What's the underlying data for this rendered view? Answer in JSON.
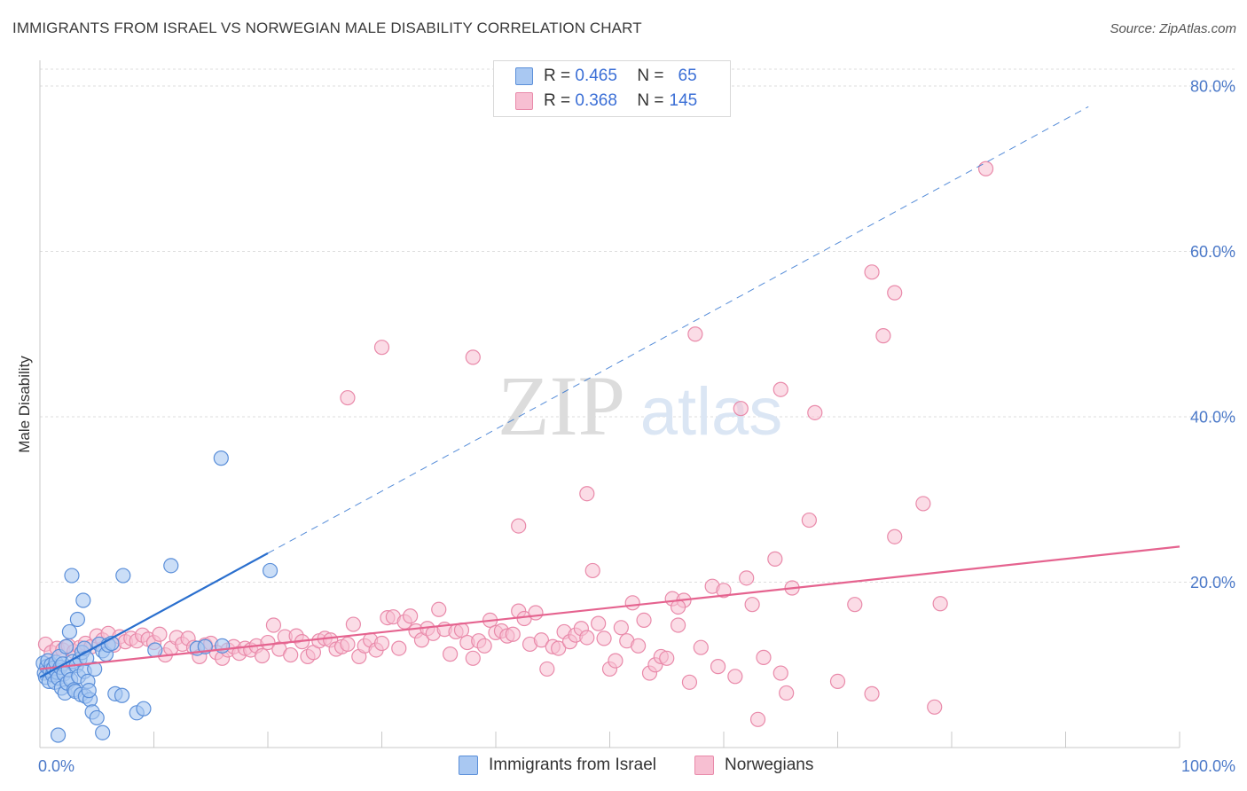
{
  "title": "IMMIGRANTS FROM ISRAEL VS NORWEGIAN MALE DISABILITY CORRELATION CHART",
  "source": "Source: ZipAtlas.com",
  "watermark": {
    "zip": "ZIP",
    "atlas": "atlas"
  },
  "colors": {
    "blue_fill": "#a9c8f2",
    "blue_stroke": "#5b8fd9",
    "blue_line": "#2a6fce",
    "pink_fill": "#f7bfd2",
    "pink_stroke": "#e98aaa",
    "pink_line": "#e5638f",
    "grid": "#dddddd",
    "tick_text": "#4a78c8"
  },
  "legend": {
    "rows": [
      {
        "r_label": "R =",
        "r_value": "0.465",
        "n_label": "N =",
        "n_value": "65"
      },
      {
        "r_label": "R =",
        "r_value": "0.368",
        "n_label": "N =",
        "n_value": "145"
      }
    ]
  },
  "bottom_legend": {
    "series1": "Immigrants from Israel",
    "series2": "Norwegians"
  },
  "chart_data": {
    "type": "scatter",
    "title": "IMMIGRANTS FROM ISRAEL VS NORWEGIAN MALE DISABILITY CORRELATION CHART",
    "xlabel": "",
    "ylabel": "Male Disability",
    "xlim": [
      0,
      100
    ],
    "ylim": [
      0,
      82
    ],
    "x_tick_labels": [
      "0.0%",
      "100.0%"
    ],
    "y_ticks": [
      20,
      40,
      60,
      80
    ],
    "y_tick_labels": [
      "20.0%",
      "40.0%",
      "60.0%",
      "80.0%"
    ],
    "grid": true,
    "series": [
      {
        "name": "Immigrants from Israel",
        "R": 0.465,
        "N": 65,
        "trend": {
          "x0": 0,
          "y0": 8.5,
          "x1": 20,
          "y1": 23.5,
          "extend_to_x": 92
        },
        "points": [
          [
            0.3,
            10.2
          ],
          [
            0.4,
            9.0
          ],
          [
            0.5,
            8.5
          ],
          [
            0.6,
            9.8
          ],
          [
            0.7,
            10.5
          ],
          [
            0.8,
            8.0
          ],
          [
            0.9,
            9.3
          ],
          [
            1.0,
            10.0
          ],
          [
            1.1,
            8.8
          ],
          [
            1.2,
            9.6
          ],
          [
            1.3,
            7.9
          ],
          [
            1.4,
            10.3
          ],
          [
            1.5,
            9.1
          ],
          [
            1.6,
            8.4
          ],
          [
            1.7,
            11.0
          ],
          [
            1.8,
            9.7
          ],
          [
            1.9,
            7.2
          ],
          [
            2.0,
            10.1
          ],
          [
            2.1,
            8.9
          ],
          [
            2.2,
            6.6
          ],
          [
            2.3,
            12.2
          ],
          [
            2.4,
            7.8
          ],
          [
            2.5,
            9.4
          ],
          [
            2.6,
            14.0
          ],
          [
            2.7,
            8.2
          ],
          [
            2.8,
            20.8
          ],
          [
            2.9,
            10.4
          ],
          [
            3.0,
            7.0
          ],
          [
            3.1,
            6.8
          ],
          [
            3.2,
            9.9
          ],
          [
            3.3,
            15.5
          ],
          [
            3.4,
            8.6
          ],
          [
            3.5,
            10.7
          ],
          [
            3.6,
            6.4
          ],
          [
            3.7,
            11.5
          ],
          [
            3.8,
            17.8
          ],
          [
            3.9,
            9.2
          ],
          [
            4.0,
            6.2
          ],
          [
            4.2,
            8.0
          ],
          [
            4.4,
            5.8
          ],
          [
            4.6,
            4.3
          ],
          [
            4.8,
            9.5
          ],
          [
            5.0,
            3.6
          ],
          [
            3.9,
            12.0
          ],
          [
            4.3,
            6.9
          ],
          [
            5.2,
            12.5
          ],
          [
            5.5,
            11.7
          ],
          [
            5.8,
            11.3
          ],
          [
            6.0,
            12.4
          ],
          [
            4.1,
            10.8
          ],
          [
            6.3,
            12.6
          ],
          [
            6.6,
            6.5
          ],
          [
            7.2,
            6.3
          ],
          [
            7.3,
            20.8
          ],
          [
            8.5,
            4.2
          ],
          [
            9.1,
            4.7
          ],
          [
            10.1,
            11.8
          ],
          [
            11.5,
            22.0
          ],
          [
            13.8,
            12.0
          ],
          [
            14.5,
            12.2
          ],
          [
            15.9,
            35.0
          ],
          [
            16.0,
            12.3
          ],
          [
            20.2,
            21.4
          ],
          [
            1.6,
            1.5
          ],
          [
            5.5,
            1.8
          ]
        ]
      },
      {
        "name": "Norwegians",
        "R": 0.368,
        "N": 145,
        "trend": {
          "x0": 0,
          "y0": 9.5,
          "x1": 100,
          "y1": 24.3
        },
        "points": [
          [
            0.5,
            12.5
          ],
          [
            1.0,
            11.5
          ],
          [
            1.5,
            12.0
          ],
          [
            2.0,
            11.8
          ],
          [
            2.5,
            12.3
          ],
          [
            3.0,
            11.6
          ],
          [
            3.5,
            12.1
          ],
          [
            4.0,
            12.6
          ],
          [
            4.5,
            12.2
          ],
          [
            5.0,
            13.5
          ],
          [
            5.5,
            13.0
          ],
          [
            6.0,
            13.8
          ],
          [
            6.5,
            12.4
          ],
          [
            7.0,
            13.4
          ],
          [
            7.5,
            12.8
          ],
          [
            8.0,
            13.2
          ],
          [
            8.5,
            12.9
          ],
          [
            9.0,
            13.6
          ],
          [
            9.5,
            13.1
          ],
          [
            10.0,
            12.7
          ],
          [
            10.5,
            13.7
          ],
          [
            11.0,
            11.2
          ],
          [
            11.5,
            12.0
          ],
          [
            12.0,
            13.3
          ],
          [
            12.5,
            12.5
          ],
          [
            13.0,
            13.2
          ],
          [
            13.5,
            12.1
          ],
          [
            14.0,
            11.0
          ],
          [
            14.5,
            12.4
          ],
          [
            15.0,
            12.6
          ],
          [
            15.5,
            11.5
          ],
          [
            16.0,
            10.8
          ],
          [
            16.5,
            11.8
          ],
          [
            17.0,
            12.2
          ],
          [
            17.5,
            11.4
          ],
          [
            18.0,
            12.0
          ],
          [
            18.5,
            11.8
          ],
          [
            19.0,
            12.3
          ],
          [
            19.5,
            11.1
          ],
          [
            20.0,
            12.7
          ],
          [
            20.5,
            14.8
          ],
          [
            21.0,
            11.9
          ],
          [
            21.5,
            13.4
          ],
          [
            22.0,
            11.2
          ],
          [
            22.5,
            13.5
          ],
          [
            23.0,
            12.8
          ],
          [
            23.5,
            11.0
          ],
          [
            24.0,
            11.5
          ],
          [
            24.5,
            12.9
          ],
          [
            25.0,
            13.2
          ],
          [
            25.5,
            13.0
          ],
          [
            26.0,
            11.9
          ],
          [
            26.5,
            12.2
          ],
          [
            27.0,
            12.5
          ],
          [
            27.5,
            14.9
          ],
          [
            28.0,
            11.0
          ],
          [
            28.5,
            12.3
          ],
          [
            29.0,
            13.0
          ],
          [
            29.5,
            11.8
          ],
          [
            30.0,
            12.6
          ],
          [
            30.5,
            15.7
          ],
          [
            31.0,
            15.8
          ],
          [
            31.5,
            12.0
          ],
          [
            32.0,
            15.2
          ],
          [
            32.5,
            15.9
          ],
          [
            33.0,
            14.1
          ],
          [
            33.5,
            13.0
          ],
          [
            34.0,
            14.4
          ],
          [
            34.5,
            13.8
          ],
          [
            35.0,
            16.7
          ],
          [
            35.5,
            14.3
          ],
          [
            36.0,
            11.3
          ],
          [
            36.5,
            14.0
          ],
          [
            37.0,
            14.2
          ],
          [
            37.5,
            12.7
          ],
          [
            38.0,
            10.8
          ],
          [
            38.5,
            12.9
          ],
          [
            39.0,
            12.3
          ],
          [
            39.5,
            15.4
          ],
          [
            40.0,
            13.9
          ],
          [
            40.5,
            14.1
          ],
          [
            41.0,
            13.5
          ],
          [
            41.5,
            13.7
          ],
          [
            42.0,
            16.5
          ],
          [
            42.5,
            15.6
          ],
          [
            43.0,
            12.5
          ],
          [
            43.5,
            16.3
          ],
          [
            44.0,
            13.0
          ],
          [
            44.5,
            9.5
          ],
          [
            45.0,
            12.2
          ],
          [
            45.5,
            12.0
          ],
          [
            46.0,
            14.0
          ],
          [
            46.5,
            12.8
          ],
          [
            47.0,
            13.6
          ],
          [
            47.5,
            14.4
          ],
          [
            48.0,
            13.3
          ],
          [
            48.5,
            21.4
          ],
          [
            49.0,
            15.0
          ],
          [
            49.5,
            13.2
          ],
          [
            50.0,
            9.5
          ],
          [
            50.5,
            10.5
          ],
          [
            51.0,
            14.5
          ],
          [
            51.5,
            12.9
          ],
          [
            52.0,
            17.5
          ],
          [
            52.5,
            12.3
          ],
          [
            53.0,
            15.4
          ],
          [
            53.5,
            9.0
          ],
          [
            54.0,
            10.0
          ],
          [
            54.5,
            11.0
          ],
          [
            55.0,
            10.8
          ],
          [
            55.5,
            18.0
          ],
          [
            56.0,
            14.8
          ],
          [
            56.5,
            17.8
          ],
          [
            57.0,
            7.9
          ],
          [
            58.0,
            12.1
          ],
          [
            59.0,
            19.5
          ],
          [
            59.5,
            9.8
          ],
          [
            60.0,
            19.0
          ],
          [
            61.0,
            8.6
          ],
          [
            62.0,
            20.5
          ],
          [
            62.5,
            17.3
          ],
          [
            63.0,
            3.4
          ],
          [
            63.5,
            10.9
          ],
          [
            64.5,
            22.8
          ],
          [
            65.0,
            9.0
          ],
          [
            65.5,
            6.6
          ],
          [
            66.0,
            19.3
          ],
          [
            67.5,
            27.5
          ],
          [
            70.0,
            8.0
          ],
          [
            71.5,
            17.3
          ],
          [
            73.0,
            6.5
          ],
          [
            75.0,
            25.5
          ],
          [
            77.5,
            29.5
          ],
          [
            78.5,
            4.9
          ],
          [
            79.0,
            17.4
          ],
          [
            83.0,
            70.0
          ],
          [
            74.0,
            49.8
          ],
          [
            68.0,
            40.5
          ],
          [
            65.0,
            43.3
          ],
          [
            61.5,
            41.0
          ],
          [
            57.5,
            50.0
          ],
          [
            56.0,
            17.0
          ],
          [
            48.0,
            30.7
          ],
          [
            42.0,
            26.8
          ],
          [
            38.0,
            47.2
          ],
          [
            30.0,
            48.4
          ],
          [
            27.0,
            42.3
          ],
          [
            75.0,
            55.0
          ],
          [
            73.0,
            57.5
          ]
        ]
      }
    ]
  }
}
